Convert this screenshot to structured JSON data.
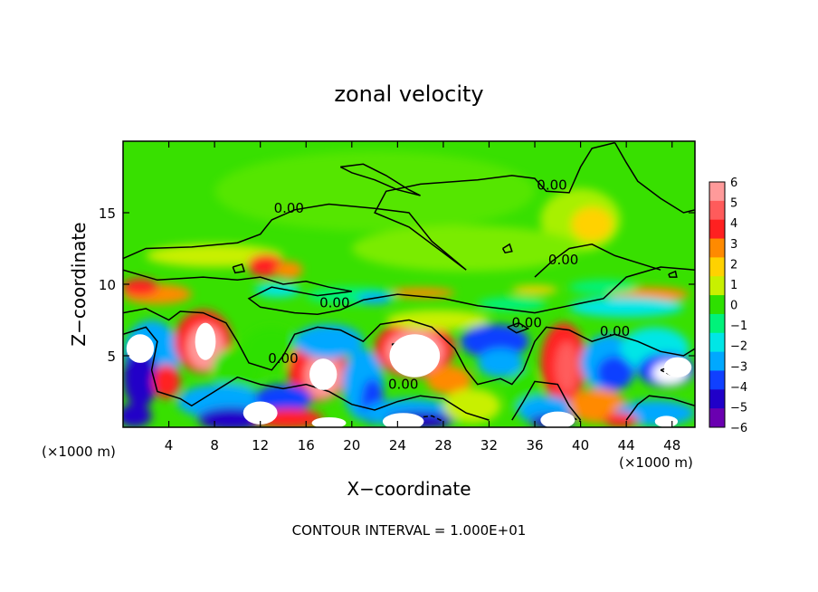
{
  "chart_data": {
    "type": "heatmap",
    "title": "zonal velocity",
    "xlabel": "X−coordinate",
    "ylabel": "Z−coordinate",
    "x_unit_label": "(×1000 m)",
    "y_unit_label": "(×1000 m)",
    "footer": "CONTOUR INTERVAL = 1.000E+01",
    "xlim": [
      0,
      50
    ],
    "ylim": [
      0,
      20
    ],
    "xticks": [
      4,
      8,
      12,
      16,
      20,
      24,
      28,
      32,
      36,
      40,
      44,
      48
    ],
    "xtick_labels": [
      "4",
      "8",
      "12",
      "16",
      "20",
      "24",
      "28",
      "32",
      "36",
      "40",
      "44",
      "48"
    ],
    "yticks": [
      5,
      10,
      15
    ],
    "ytick_labels": [
      "5",
      "10",
      "15"
    ],
    "colorbar": {
      "levels": [
        6,
        5,
        4,
        3,
        2,
        1,
        0,
        -1,
        -2,
        -3,
        -4,
        -5,
        -6
      ],
      "labels": [
        "6",
        "5",
        "4",
        "3",
        "2",
        "1",
        "0",
        "−1",
        "−2",
        "−3",
        "−4",
        "−5",
        "−6"
      ],
      "colors": [
        "#ff9a9a",
        "#ff5b5b",
        "#ff2020",
        "#ff8a00",
        "#ffd200",
        "#c8f000",
        "#2ee000",
        "#00f27a",
        "#00e6e6",
        "#00a8ff",
        "#1040ff",
        "#2000c8",
        "#6a00b0"
      ]
    },
    "contour_labels": [
      {
        "text": "0.00",
        "x": 14.5,
        "y": 15.0
      },
      {
        "text": "0.00",
        "x": 37.5,
        "y": 16.6
      },
      {
        "text": "0.00",
        "x": 38.5,
        "y": 11.4
      },
      {
        "text": "0.00",
        "x": 18.5,
        "y": 8.4
      },
      {
        "text": "0.00",
        "x": 35.3,
        "y": 7.0
      },
      {
        "text": "0.00",
        "x": 43.0,
        "y": 6.4
      },
      {
        "text": "0.00",
        "x": 14.0,
        "y": 4.5
      },
      {
        "text": "0.00",
        "x": 24.5,
        "y": 2.7
      }
    ]
  }
}
